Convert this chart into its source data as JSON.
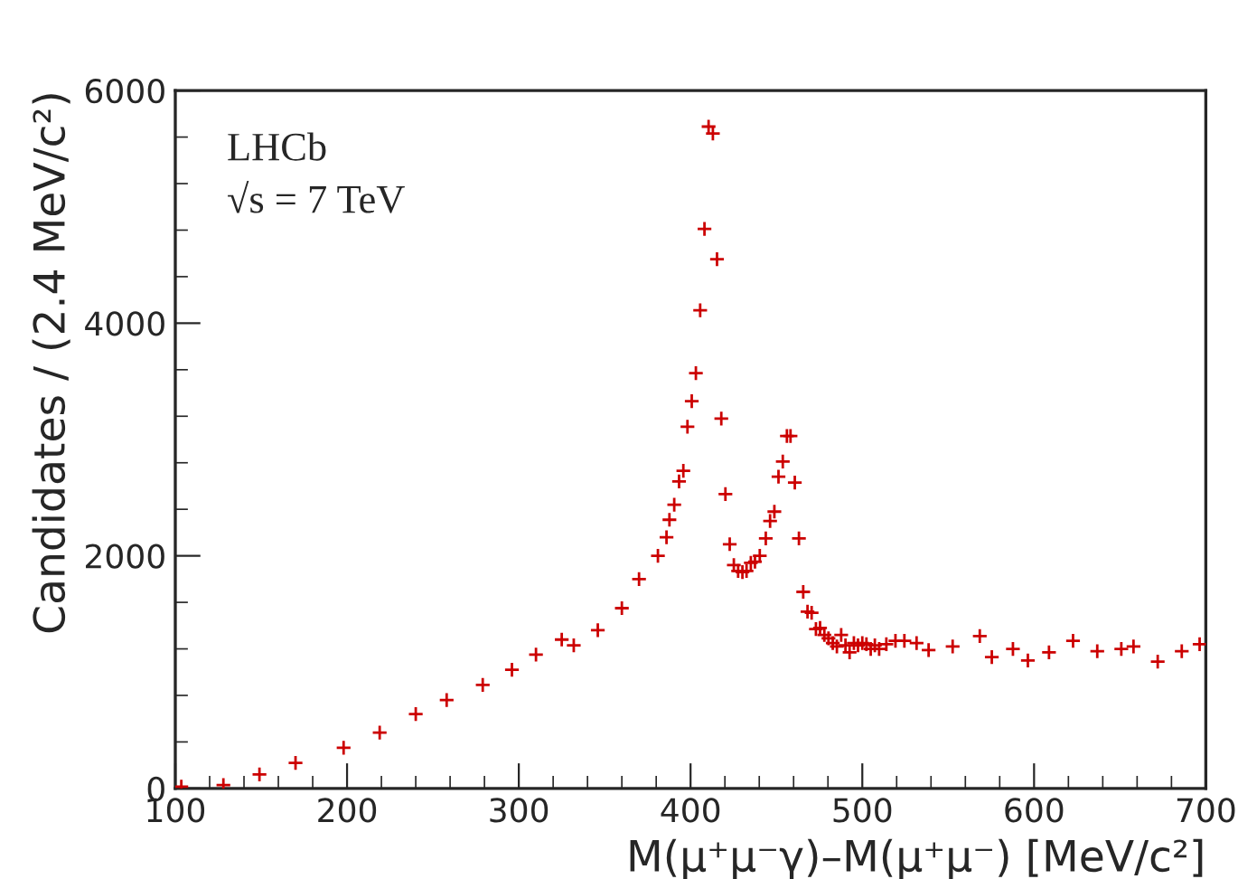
{
  "chart_data": {
    "type": "scatter",
    "xlabel": "M(μ⁺μ⁻γ)–M(μ⁺μ⁻) [MeV/c²]",
    "ylabel": "Candidates / (2.4 MeV/c²)",
    "annotations": [
      "LHCb",
      "√s = 7 TeV"
    ],
    "xlim": [
      100,
      700
    ],
    "xticks": [
      100,
      200,
      300,
      400,
      500,
      600,
      700
    ],
    "ylim": [
      0,
      6000
    ],
    "yticks": [
      0,
      2000,
      4000,
      6000
    ],
    "marker": "cross",
    "grid": false,
    "legend": false,
    "series": [
      {
        "color": "#cc0000",
        "x": [
          103.5,
          128,
          149,
          170,
          198,
          219,
          240,
          258,
          279,
          296,
          310,
          325,
          332,
          346,
          360,
          370,
          381,
          386,
          387.7,
          390.5,
          393.3,
          395.8,
          398.2,
          400.7,
          403.1,
          405.6,
          408.1,
          410.5,
          413.0,
          415.4,
          417.9,
          420.3,
          422.8,
          425.2,
          427.7,
          430.2,
          432.6,
          435.1,
          437.5,
          440.3,
          443.8,
          446.3,
          448.8,
          451.2,
          453.7,
          456.1,
          458.2,
          460.7,
          463.1,
          465.6,
          468.1,
          470.5,
          473.0,
          475.4,
          477.9,
          480.3,
          482.8,
          485.2,
          487.7,
          490.2,
          492.6,
          495.1,
          497.5,
          500,
          502.4,
          504.9,
          507.3,
          509.8,
          514.0,
          519.3,
          524.5,
          531.6,
          538.6,
          552.6,
          568.4,
          575.4,
          587.7,
          596.4,
          608.7,
          622.7,
          636.8,
          650.8,
          657.9,
          672,
          686,
          696.4
        ],
        "values": [
          15,
          30,
          120,
          220,
          350,
          480,
          640,
          760,
          890,
          1020,
          1150,
          1280,
          1230,
          1360,
          1550,
          1800,
          2000,
          2160,
          2310,
          2440,
          2640,
          2730,
          3110,
          3330,
          3570,
          4110,
          4810,
          5690,
          5630,
          4550,
          3180,
          2530,
          2100,
          1920,
          1870,
          1860,
          1870,
          1940,
          1950,
          2000,
          2150,
          2300,
          2380,
          2680,
          2810,
          3030,
          3030,
          2630,
          2150,
          1690,
          1520,
          1510,
          1370,
          1380,
          1320,
          1290,
          1250,
          1220,
          1320,
          1230,
          1170,
          1250,
          1230,
          1250,
          1240,
          1200,
          1230,
          1200,
          1240,
          1270,
          1270,
          1250,
          1190,
          1220,
          1310,
          1130,
          1200,
          1100,
          1170,
          1270,
          1180,
          1200,
          1220,
          1090,
          1180,
          1240
        ]
      }
    ]
  }
}
